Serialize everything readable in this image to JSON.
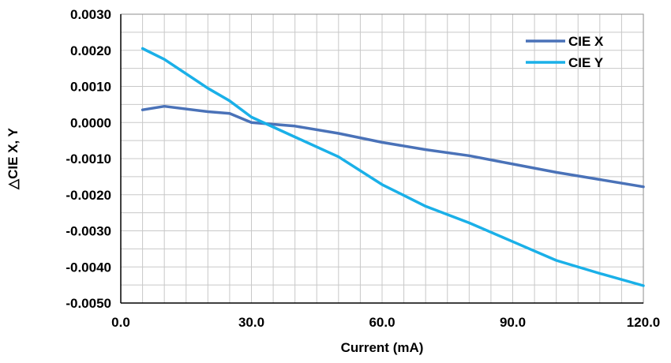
{
  "chart_data": {
    "type": "line",
    "title": "",
    "xlabel": "Current (mA)",
    "ylabel": "△CIE X, Y",
    "xlim": [
      0,
      120
    ],
    "ylim": [
      -0.005,
      0.003
    ],
    "x_ticks": [
      {
        "value": 0,
        "label": "0.0"
      },
      {
        "value": 30,
        "label": "30.0"
      },
      {
        "value": 60,
        "label": "60.0"
      },
      {
        "value": 90,
        "label": "90.0"
      },
      {
        "value": 120,
        "label": "120.0"
      }
    ],
    "y_ticks": [
      {
        "value": 0.003,
        "label": "0.0030"
      },
      {
        "value": 0.002,
        "label": "0.0020"
      },
      {
        "value": 0.001,
        "label": "0.0010"
      },
      {
        "value": 0.0,
        "label": "0.0000"
      },
      {
        "value": -0.001,
        "label": "-0.0010"
      },
      {
        "value": -0.002,
        "label": "-0.0020"
      },
      {
        "value": -0.003,
        "label": "-0.0030"
      },
      {
        "value": -0.004,
        "label": "-0.0040"
      },
      {
        "value": -0.005,
        "label": "-0.0050"
      }
    ],
    "x_grid_step": 5,
    "y_grid_step": 0.0005,
    "grid": true,
    "legend_position": "top-right",
    "series": [
      {
        "name": "CIE X",
        "color": "#4a72b8",
        "x": [
          5,
          10,
          20,
          25,
          30,
          40,
          50,
          60,
          70,
          80,
          90,
          100,
          110,
          120
        ],
        "y": [
          0.00035,
          0.00045,
          0.0003,
          0.00025,
          0.0,
          -0.0001,
          -0.0003,
          -0.00055,
          -0.00075,
          -0.00092,
          -0.00115,
          -0.00138,
          -0.00158,
          -0.00178
        ]
      },
      {
        "name": "CIE Y",
        "color": "#1ab0e8",
        "x": [
          5,
          10,
          20,
          25,
          30,
          40,
          50,
          60,
          70,
          80,
          90,
          100,
          110,
          120
        ],
        "y": [
          0.00205,
          0.00175,
          0.00095,
          0.0006,
          0.00015,
          -0.0004,
          -0.00095,
          -0.00172,
          -0.00232,
          -0.00278,
          -0.0033,
          -0.00382,
          -0.00418,
          -0.00452
        ]
      }
    ]
  }
}
